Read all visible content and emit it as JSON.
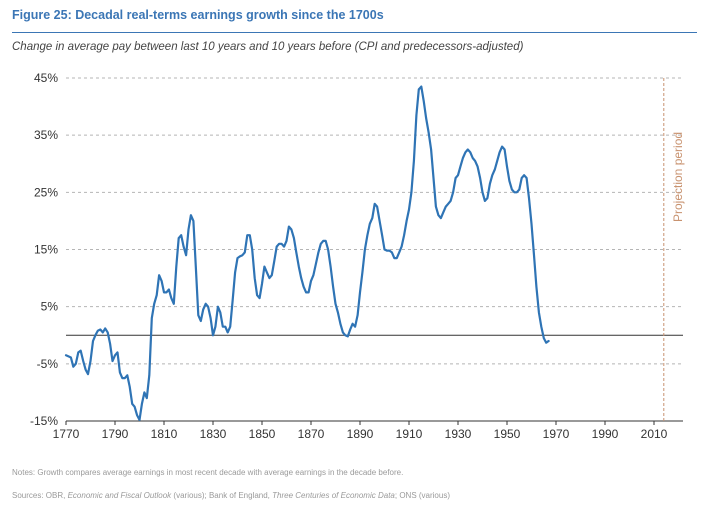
{
  "figure": {
    "title": "Figure 25:  Decadal real-terms earnings growth since the 1700s",
    "subtitle": "Change in average pay between last 10 years and 10 years before (CPI and predecessors-adjusted)",
    "notes": "Notes: Growth compares average earnings in most recent decade with average earnings in the decade before.",
    "sources_parts": [
      {
        "text": "Sources: OBR, ",
        "italic": false
      },
      {
        "text": "Economic and Fiscal Outlook",
        "italic": true
      },
      {
        "text": " (various); Bank of England, ",
        "italic": false
      },
      {
        "text": "Three Centuries of Economic Data",
        "italic": true
      },
      {
        "text": "; ONS (various)",
        "italic": false
      }
    ]
  },
  "colors": {
    "line": "#2f74b5",
    "projection": "#c8926f",
    "grid": "#b5b5b5",
    "axis": "#333333",
    "title": "#3b76b5"
  },
  "chart_data": {
    "type": "line",
    "title": "",
    "xlabel": "",
    "ylabel": "",
    "xlim": [
      1770,
      2021
    ],
    "ylim": [
      -15,
      45
    ],
    "y_ticks": [
      -15,
      -5,
      5,
      15,
      25,
      35,
      45
    ],
    "y_tick_labels": [
      "-15%",
      "-5%",
      "5%",
      "15%",
      "25%",
      "35%",
      "45%"
    ],
    "x_ticks": [
      1770,
      1790,
      1810,
      1830,
      1850,
      1870,
      1890,
      1910,
      1930,
      1950,
      1970,
      1990,
      2010
    ],
    "x_tick_labels": [
      "1770",
      "1790",
      "1810",
      "1830",
      "1850",
      "1870",
      "1890",
      "1910",
      "1930",
      "1950",
      "1970",
      "1990",
      "2010"
    ],
    "grid": "horizontal-dashed",
    "projection_start": 2014,
    "projection_label": "Projection period",
    "series": [
      {
        "points": [
          [
            1770,
            -3.5
          ],
          [
            1771,
            -3.7
          ],
          [
            1772,
            -3.9
          ],
          [
            1773,
            -5.5
          ],
          [
            1774,
            -5.0
          ],
          [
            1775,
            -3.0
          ],
          [
            1776,
            -2.7
          ],
          [
            1777,
            -4.5
          ],
          [
            1778,
            -6.0
          ],
          [
            1779,
            -6.8
          ],
          [
            1780,
            -4.5
          ],
          [
            1781,
            -1.0
          ],
          [
            1782,
            0.0
          ],
          [
            1783,
            0.8
          ],
          [
            1784,
            1.0
          ],
          [
            1785,
            0.5
          ],
          [
            1786,
            1.2
          ],
          [
            1787,
            0.5
          ],
          [
            1788,
            -1.5
          ],
          [
            1789,
            -4.5
          ],
          [
            1790,
            -3.5
          ],
          [
            1791,
            -3.0
          ],
          [
            1792,
            -6.5
          ],
          [
            1793,
            -7.5
          ],
          [
            1794,
            -7.5
          ],
          [
            1795,
            -7.0
          ],
          [
            1796,
            -9.0
          ],
          [
            1797,
            -12.0
          ],
          [
            1798,
            -12.5
          ],
          [
            1799,
            -14.0
          ],
          [
            1800,
            -14.8
          ],
          [
            1801,
            -12.0
          ],
          [
            1802,
            -10.0
          ],
          [
            1803,
            -11.0
          ],
          [
            1804,
            -7.0
          ],
          [
            1805,
            3.0
          ],
          [
            1806,
            5.5
          ],
          [
            1807,
            7.0
          ],
          [
            1808,
            10.5
          ],
          [
            1809,
            9.5
          ],
          [
            1810,
            7.5
          ],
          [
            1811,
            7.5
          ],
          [
            1812,
            8.0
          ],
          [
            1813,
            6.5
          ],
          [
            1814,
            5.5
          ],
          [
            1815,
            12.0
          ],
          [
            1816,
            17.0
          ],
          [
            1817,
            17.5
          ],
          [
            1818,
            15.5
          ],
          [
            1819,
            14.0
          ],
          [
            1820,
            18.5
          ],
          [
            1821,
            21.0
          ],
          [
            1822,
            20.0
          ],
          [
            1823,
            12.0
          ],
          [
            1824,
            3.5
          ],
          [
            1825,
            2.5
          ],
          [
            1826,
            4.5
          ],
          [
            1827,
            5.5
          ],
          [
            1828,
            5.0
          ],
          [
            1829,
            3.0
          ],
          [
            1830,
            0.0
          ],
          [
            1831,
            1.5
          ],
          [
            1832,
            5.0
          ],
          [
            1833,
            4.0
          ],
          [
            1834,
            1.5
          ],
          [
            1835,
            1.5
          ],
          [
            1836,
            0.5
          ],
          [
            1837,
            1.5
          ],
          [
            1838,
            6.0
          ],
          [
            1839,
            11.0
          ],
          [
            1840,
            13.5
          ],
          [
            1841,
            13.8
          ],
          [
            1842,
            14.0
          ],
          [
            1843,
            14.5
          ],
          [
            1844,
            17.5
          ],
          [
            1845,
            17.5
          ],
          [
            1846,
            15.0
          ],
          [
            1847,
            10.0
          ],
          [
            1848,
            7.0
          ],
          [
            1849,
            6.5
          ],
          [
            1850,
            9.0
          ],
          [
            1851,
            12.0
          ],
          [
            1852,
            11.0
          ],
          [
            1853,
            10.0
          ],
          [
            1854,
            10.5
          ],
          [
            1855,
            13.0
          ],
          [
            1856,
            15.5
          ],
          [
            1857,
            16.0
          ],
          [
            1858,
            16.0
          ],
          [
            1859,
            15.5
          ],
          [
            1860,
            16.5
          ],
          [
            1861,
            19.0
          ],
          [
            1862,
            18.5
          ],
          [
            1863,
            17.0
          ],
          [
            1864,
            14.5
          ],
          [
            1865,
            12.0
          ],
          [
            1866,
            10.0
          ],
          [
            1867,
            8.5
          ],
          [
            1868,
            7.5
          ],
          [
            1869,
            7.5
          ],
          [
            1870,
            9.5
          ],
          [
            1871,
            10.5
          ],
          [
            1872,
            12.5
          ],
          [
            1873,
            14.5
          ],
          [
            1874,
            16.0
          ],
          [
            1875,
            16.5
          ],
          [
            1876,
            16.5
          ],
          [
            1877,
            15.0
          ],
          [
            1878,
            12.0
          ],
          [
            1879,
            8.5
          ],
          [
            1880,
            5.5
          ],
          [
            1881,
            4.0
          ],
          [
            1882,
            2.0
          ],
          [
            1883,
            0.5
          ],
          [
            1884,
            0.0
          ],
          [
            1885,
            -0.2
          ],
          [
            1886,
            1.0
          ],
          [
            1887,
            2.0
          ],
          [
            1888,
            1.5
          ],
          [
            1889,
            3.5
          ],
          [
            1890,
            7.5
          ],
          [
            1891,
            11.0
          ],
          [
            1892,
            15.0
          ],
          [
            1893,
            17.5
          ],
          [
            1894,
            19.5
          ],
          [
            1895,
            20.5
          ],
          [
            1896,
            23.0
          ],
          [
            1897,
            22.5
          ],
          [
            1898,
            20.0
          ],
          [
            1899,
            17.5
          ],
          [
            1900,
            15.0
          ],
          [
            1901,
            14.8
          ],
          [
            1902,
            14.8
          ],
          [
            1903,
            14.5
          ],
          [
            1904,
            13.5
          ],
          [
            1905,
            13.5
          ],
          [
            1906,
            14.5
          ],
          [
            1907,
            15.5
          ],
          [
            1908,
            17.5
          ],
          [
            1909,
            20.0
          ],
          [
            1910,
            22.0
          ],
          [
            1911,
            25.0
          ],
          [
            1912,
            30.5
          ],
          [
            1913,
            38.5
          ],
          [
            1914,
            43.0
          ],
          [
            1915,
            43.5
          ],
          [
            1916,
            41.0
          ],
          [
            1917,
            38.0
          ],
          [
            1918,
            35.5
          ],
          [
            1919,
            32.5
          ],
          [
            1920,
            27.5
          ],
          [
            1921,
            22.5
          ],
          [
            1922,
            21.0
          ],
          [
            1923,
            20.5
          ],
          [
            1924,
            21.5
          ],
          [
            1925,
            22.5
          ],
          [
            1926,
            23.0
          ],
          [
            1927,
            23.5
          ],
          [
            1928,
            25.0
          ],
          [
            1929,
            27.5
          ],
          [
            1930,
            28.0
          ],
          [
            1931,
            29.5
          ],
          [
            1932,
            31.0
          ],
          [
            1933,
            32.0
          ],
          [
            1934,
            32.5
          ],
          [
            1935,
            32.0
          ],
          [
            1936,
            31.0
          ],
          [
            1937,
            30.5
          ],
          [
            1938,
            29.5
          ],
          [
            1939,
            27.5
          ],
          [
            1940,
            25.0
          ],
          [
            1941,
            23.5
          ],
          [
            1942,
            24.0
          ],
          [
            1943,
            26.5
          ],
          [
            1944,
            28.0
          ],
          [
            1945,
            29.0
          ],
          [
            1946,
            30.5
          ],
          [
            1947,
            32.0
          ],
          [
            1948,
            33.0
          ],
          [
            1949,
            32.5
          ],
          [
            1950,
            29.5
          ],
          [
            1951,
            27.0
          ],
          [
            1952,
            25.5
          ],
          [
            1953,
            25.0
          ],
          [
            1954,
            25.0
          ],
          [
            1955,
            25.5
          ],
          [
            1956,
            27.5
          ],
          [
            1957,
            28.0
          ],
          [
            1958,
            27.5
          ],
          [
            1959,
            24.0
          ],
          [
            1960,
            19.5
          ],
          [
            1961,
            14.0
          ],
          [
            1962,
            8.5
          ],
          [
            1963,
            4.0
          ],
          [
            1964,
            1.5
          ],
          [
            1965,
            -0.5
          ],
          [
            1966,
            -1.3
          ],
          [
            1967,
            -1.0
          ]
        ]
      }
    ]
  }
}
